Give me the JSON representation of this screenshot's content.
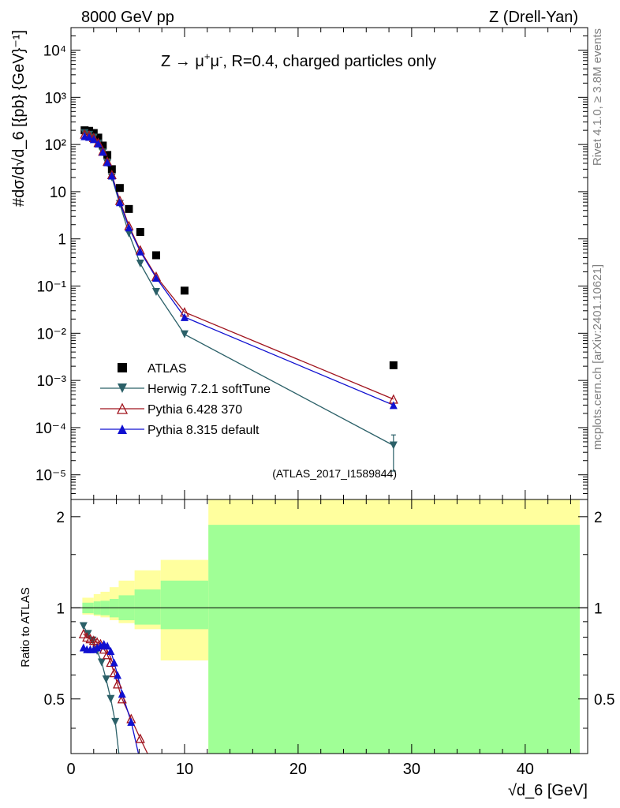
{
  "header": {
    "left": "8000 GeV pp",
    "right": "Z (Drell-Yan)"
  },
  "side_text": {
    "rivet": "Rivet 4.1.0, ≥ 3.8M events",
    "mcplots": "mcplots.cern.ch [arXiv:2401.10621]"
  },
  "chart_data": [
    {
      "panel": "main",
      "type": "scatter",
      "title_prefix": "Z → μ",
      "title_suffix": ", R=0.4, charged particles only",
      "ylabel": "#dσ/d√d_6 [{pb} {GeV}⁻¹]",
      "analysis_id": "(ATLAS_2017_I1589844)",
      "yscale": "log",
      "xlim": [
        0,
        45.5
      ],
      "ylim": [
        3e-06,
        30000.0
      ],
      "y_ticks": [
        {
          "value": 1e-05,
          "label": "10⁻⁵"
        },
        {
          "value": 0.0001,
          "label": "10⁻⁴"
        },
        {
          "value": 0.001,
          "label": "10⁻³"
        },
        {
          "value": 0.01,
          "label": "10⁻²"
        },
        {
          "value": 0.1,
          "label": "10⁻¹"
        },
        {
          "value": 1,
          "label": "1"
        },
        {
          "value": 10,
          "label": "10"
        },
        {
          "value": 100,
          "label": "10²"
        },
        {
          "value": 1000,
          "label": "10³"
        },
        {
          "value": 10000,
          "label": "10⁴"
        }
      ],
      "series": [
        {
          "name": "ATLAS",
          "color": "#000000",
          "marker": "square",
          "line": false,
          "x": [
            1.2,
            1.6,
            2.0,
            2.4,
            2.8,
            3.2,
            3.6,
            4.3,
            5.1,
            6.1,
            7.5,
            10.0,
            28.4
          ],
          "y": [
            200,
            195,
            175,
            140,
            95,
            60,
            30,
            12,
            4.3,
            1.4,
            0.45,
            0.08,
            0.0021
          ]
        },
        {
          "name": "Herwig 7.2.1 softTune",
          "color": "#2b6068",
          "marker": "triangle-down",
          "line": true,
          "x": [
            1.2,
            1.6,
            2.0,
            2.4,
            2.8,
            3.2,
            3.6,
            4.3,
            5.1,
            6.1,
            7.5,
            10.0,
            28.4
          ],
          "y": [
            175,
            160,
            140,
            105,
            68,
            40,
            20,
            5.5,
            1.3,
            0.3,
            0.075,
            0.0095,
            4.2e-05
          ],
          "last_err": [
            1.2e-05,
            7e-05
          ]
        },
        {
          "name": "Pythia 6.428 370",
          "color": "#a0141e",
          "marker": "triangle-open",
          "line": true,
          "x": [
            1.2,
            1.6,
            2.0,
            2.4,
            2.8,
            3.2,
            3.6,
            4.3,
            5.1,
            6.1,
            7.5,
            10.0,
            28.4
          ],
          "y": [
            165,
            158,
            140,
            110,
            72,
            44,
            23,
            6.5,
            1.9,
            0.58,
            0.16,
            0.028,
            0.0004
          ]
        },
        {
          "name": "Pythia 8.315 default",
          "color": "#1010d0",
          "marker": "triangle-up",
          "line": true,
          "x": [
            1.2,
            1.6,
            2.0,
            2.4,
            2.8,
            3.2,
            3.6,
            4.3,
            5.1,
            6.1,
            7.5,
            10.0,
            28.4
          ],
          "y": [
            150,
            145,
            130,
            105,
            70,
            42,
            22,
            6.0,
            1.75,
            0.54,
            0.15,
            0.022,
            0.0003
          ]
        }
      ]
    },
    {
      "panel": "ratio",
      "type": "line",
      "ylabel": "Ratio to ATLAS",
      "xlabel": "√d_6 [GeV]",
      "xlim": [
        0,
        45.5
      ],
      "ylim": [
        0.33,
        2.28
      ],
      "x_ticks": [
        0,
        10,
        20,
        30,
        40
      ],
      "y_ticks": [
        0.5,
        1,
        2
      ],
      "bands": {
        "edges": [
          1.0,
          2.0,
          2.6,
          3.4,
          4.2,
          5.6,
          7.9,
          12.1,
          44.8
        ],
        "yellow_lo": [
          0.95,
          0.94,
          0.93,
          0.91,
          0.89,
          0.85,
          0.67,
          0.33
        ],
        "yellow_hi": [
          1.08,
          1.11,
          1.13,
          1.17,
          1.23,
          1.33,
          1.44,
          2.28
        ],
        "green_lo": [
          0.96,
          0.95,
          0.945,
          0.93,
          0.91,
          0.88,
          0.85,
          0.33
        ],
        "green_hi": [
          1.04,
          1.05,
          1.055,
          1.07,
          1.1,
          1.15,
          1.23,
          1.88
        ]
      },
      "series": [
        {
          "name": "Herwig 7.2.1 softTune",
          "color": "#2b6068",
          "marker": "triangle-down",
          "x": [
            1.1,
            1.5,
            1.9,
            2.3,
            2.7,
            3.1,
            3.5,
            3.9
          ],
          "y": [
            0.87,
            0.82,
            0.78,
            0.72,
            0.66,
            0.58,
            0.5,
            0.42
          ]
        },
        {
          "name": "Pythia 6.428 370",
          "color": "#a0141e",
          "marker": "triangle-open",
          "x": [
            1.1,
            1.4,
            1.7,
            2.0,
            2.3,
            2.6,
            2.9,
            3.2,
            3.5,
            3.8,
            4.1,
            4.5,
            5.3,
            6.1
          ],
          "y": [
            0.82,
            0.8,
            0.79,
            0.78,
            0.77,
            0.76,
            0.73,
            0.7,
            0.66,
            0.61,
            0.56,
            0.5,
            0.43,
            0.37
          ]
        },
        {
          "name": "Pythia 8.315 default",
          "color": "#1010d0",
          "marker": "triangle-up",
          "x": [
            1.1,
            1.4,
            1.7,
            2.0,
            2.3,
            2.6,
            2.9,
            3.2,
            3.5,
            3.8,
            4.1,
            4.5,
            5.3
          ],
          "y": [
            0.74,
            0.73,
            0.73,
            0.73,
            0.74,
            0.75,
            0.76,
            0.75,
            0.72,
            0.66,
            0.6,
            0.52,
            0.42
          ]
        }
      ]
    }
  ]
}
